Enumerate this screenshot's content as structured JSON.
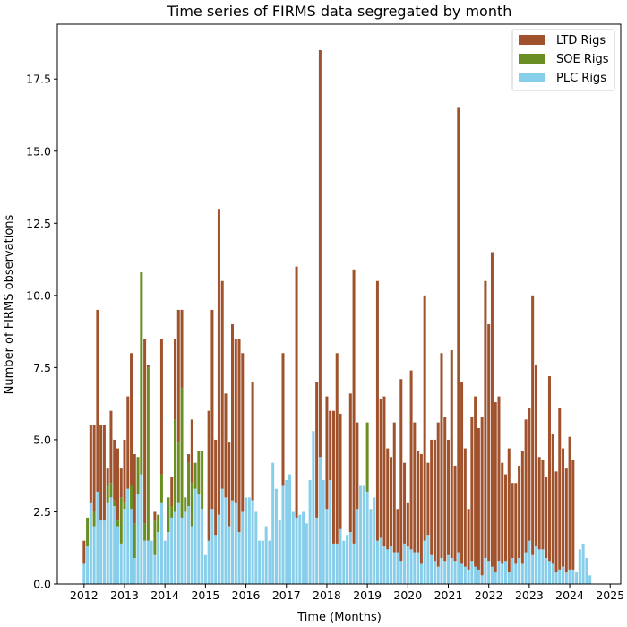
{
  "chart_data": {
    "type": "bar",
    "stacked": true,
    "title": "Time series of FIRMS data segregated by month",
    "xlabel": "Time (Months)",
    "ylabel": "Number of FIRMS observations",
    "ylim": [
      0,
      19.4
    ],
    "xlim_years": [
      2011.34,
      2025.26
    ],
    "x_ticks": [
      "2012",
      "2013",
      "2014",
      "2015",
      "2016",
      "2017",
      "2018",
      "2019",
      "2020",
      "2021",
      "2022",
      "2023",
      "2024",
      "2025"
    ],
    "y_ticks": [
      "0.0",
      "2.5",
      "5.0",
      "7.5",
      "10.0",
      "12.5",
      "15.0",
      "17.5"
    ],
    "y_tick_values": [
      0,
      2.5,
      5,
      7.5,
      10,
      12.5,
      15,
      17.5
    ],
    "grid": false,
    "legend_position": "top-right",
    "start_year": 2012,
    "series": [
      {
        "name": "PLC Rigs",
        "color": "#87CEEB",
        "values": [
          0.7,
          1.3,
          2.8,
          2.0,
          3.2,
          2.2,
          2.2,
          2.8,
          3.0,
          2.7,
          2.0,
          1.4,
          2.6,
          3.3,
          2.6,
          0.9,
          3.1,
          3.8,
          1.5,
          1.5,
          1.5,
          1.0,
          1.8,
          2.8,
          1.5,
          1.8,
          2.3,
          2.5,
          2.8,
          2.3,
          2.5,
          2.7,
          2.0,
          3.3,
          3.1,
          2.6,
          1.0,
          1.5,
          2.6,
          1.7,
          2.4,
          3.3,
          3.0,
          2.0,
          2.9,
          2.8,
          1.8,
          2.5,
          3.0,
          3.0,
          2.9,
          2.5,
          1.5,
          1.5,
          2.0,
          1.5,
          4.2,
          3.3,
          2.2,
          3.4,
          3.6,
          3.8,
          2.5,
          2.3,
          2.4,
          2.5,
          2.1,
          3.6,
          5.3,
          2.3,
          4.4,
          3.6,
          2.6,
          3.6,
          1.4,
          1.4,
          1.9,
          1.5,
          1.7,
          1.8,
          1.4,
          2.6,
          3.4,
          3.4,
          3.2,
          2.6,
          3.0,
          1.5,
          1.6,
          1.3,
          1.2,
          1.3,
          1.1,
          1.1,
          0.8,
          1.4,
          1.3,
          1.2,
          1.1,
          1.1,
          0.7,
          1.5,
          1.7,
          1.0,
          0.8,
          0.6,
          0.9,
          0.8,
          1.0,
          0.9,
          0.8,
          1.1,
          0.7,
          0.6,
          0.5,
          0.8,
          0.6,
          0.5,
          0.3,
          0.9,
          0.8,
          0.6,
          0.4,
          0.8,
          0.7,
          0.8,
          0.4,
          0.9,
          0.7,
          0.9,
          0.7,
          1.1,
          1.5,
          1.0,
          1.3,
          1.2,
          1.2,
          0.9,
          0.8,
          0.7,
          0.4,
          0.5,
          0.6,
          0.4,
          0.5,
          0.5,
          0.4,
          1.2,
          1.4,
          0.9,
          0.3
        ]
      },
      {
        "name": "SOE Rigs",
        "color": "#6B8E23",
        "values": [
          0.0,
          1.0,
          0.0,
          0.5,
          0.0,
          0.0,
          0.0,
          0.6,
          0.5,
          0.2,
          0.2,
          1.6,
          0.2,
          0.0,
          0.8,
          1.2,
          1.3,
          7.0,
          0.6,
          6.0,
          0.0,
          1.2,
          0.6,
          1.0,
          0.0,
          1.2,
          0.4,
          3.2,
          2.1,
          4.5,
          0.5,
          1.5,
          1.5,
          0.9,
          1.5,
          2.0,
          0.0,
          0.0,
          0.0,
          0.0,
          0.0,
          0.0,
          0.0,
          0.0,
          0.0,
          0.0,
          0.0,
          0.0,
          0.0,
          0.0,
          0.0,
          0.0,
          0.0,
          0.0,
          0.0,
          0.0,
          0.0,
          0.0,
          0.0,
          0.0,
          0.0,
          0.0,
          0.0,
          0.0,
          0.0,
          0.0,
          0.0,
          0.0,
          0.0,
          0.0,
          0.0,
          0.0,
          0.0,
          0.0,
          0.0,
          0.0,
          0.0,
          0.0,
          0.0,
          0.0,
          0.0,
          0.0,
          0.0,
          0.0,
          2.4,
          0.0,
          0.0,
          0.0,
          0.0,
          0.0,
          0.0,
          0.0,
          0.0,
          0.0,
          0.0,
          0.0,
          0.0,
          0.0,
          0.0,
          0.0,
          0.0,
          0.0,
          0.0,
          0.0,
          0.0,
          0.0,
          0.0,
          0.0,
          0.0,
          0.0,
          0.0,
          0.0,
          0.0,
          0.0,
          0.0,
          0.0,
          0.0,
          0.0,
          0.0,
          0.0,
          0.0,
          0.0,
          0.0,
          0.0,
          0.0,
          0.0,
          0.0,
          0.0,
          0.0,
          0.0,
          0.0,
          0.0,
          0.0,
          0.0,
          0.0,
          0.0,
          0.0,
          0.0,
          0.0,
          0.0,
          0.0,
          0.0,
          0.0,
          0.0,
          0.0,
          0.0,
          0.0,
          0.0,
          0.0,
          0.0,
          0.0
        ]
      },
      {
        "name": "LTD Rigs",
        "color": "#A0522D",
        "values": [
          0.8,
          0.0,
          2.7,
          3.0,
          6.3,
          3.3,
          3.3,
          0.6,
          2.5,
          2.1,
          2.5,
          1.0,
          2.2,
          3.2,
          4.6,
          2.4,
          0.0,
          0.0,
          6.4,
          0.1,
          0.0,
          0.3,
          0.0,
          4.7,
          0.0,
          0.0,
          1.0,
          2.8,
          4.6,
          2.7,
          0.0,
          0.3,
          2.2,
          0.0,
          0.0,
          0.0,
          0.0,
          4.5,
          6.9,
          3.3,
          10.6,
          7.2,
          3.6,
          2.9,
          6.1,
          5.7,
          6.7,
          5.5,
          0.0,
          0.0,
          4.1,
          0.0,
          0.0,
          0.0,
          0.0,
          0.0,
          0.0,
          0.0,
          0.0,
          4.6,
          0.0,
          0.0,
          0.0,
          8.7,
          0.0,
          0.0,
          0.0,
          0.0,
          0.0,
          4.7,
          14.1,
          0.0,
          3.9,
          2.4,
          4.6,
          6.6,
          4.0,
          0.0,
          0.0,
          4.8,
          9.5,
          3.0,
          0.0,
          0.0,
          0.0,
          0.0,
          0.0,
          9.0,
          4.8,
          5.2,
          3.5,
          3.1,
          4.5,
          1.5,
          6.3,
          2.8,
          1.5,
          6.2,
          4.5,
          3.5,
          3.8,
          8.5,
          2.5,
          4.0,
          4.2,
          5.0,
          7.1,
          5.0,
          4.0,
          7.2,
          3.3,
          15.4,
          6.3,
          4.1,
          2.1,
          5.0,
          5.9,
          4.9,
          5.5,
          9.6,
          8.2,
          10.9,
          5.9,
          5.7,
          3.5,
          3.0,
          4.3,
          2.6,
          2.8,
          3.2,
          3.9,
          4.6,
          4.6,
          9.0,
          6.3,
          3.2,
          3.1,
          2.8,
          6.4,
          4.5,
          3.5,
          5.6,
          4.1,
          3.6,
          4.6,
          3.8
        ]
      }
    ]
  }
}
